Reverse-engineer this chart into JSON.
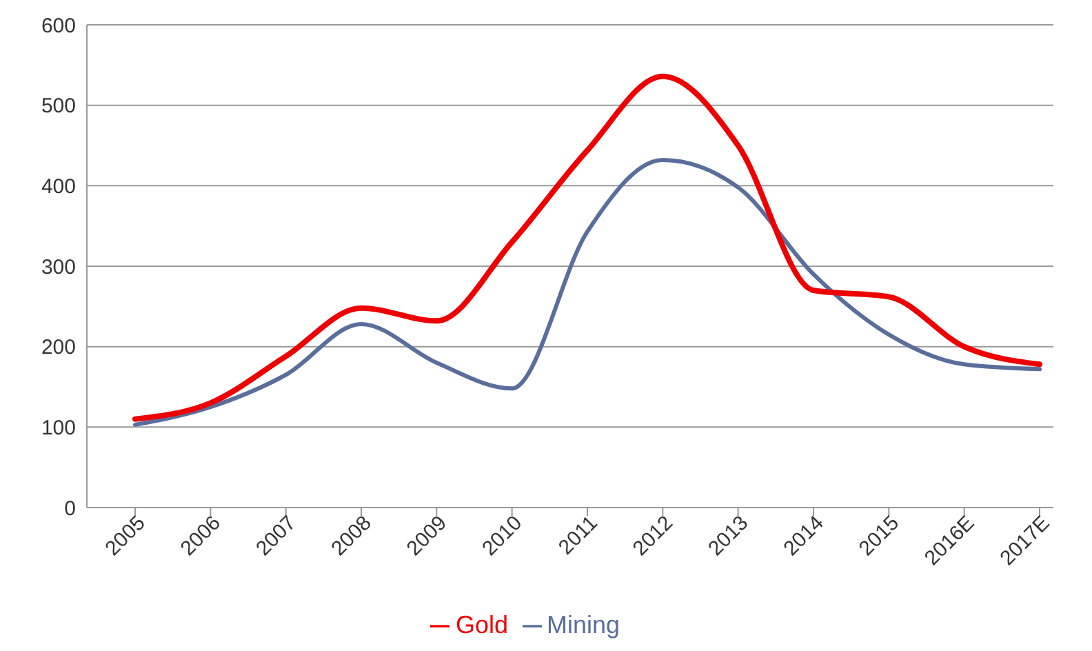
{
  "chart_data": {
    "type": "line",
    "categories": [
      "2005",
      "2006",
      "2007",
      "2008",
      "2009",
      "2010",
      "2011",
      "2012",
      "2013",
      "2014",
      "2015",
      "2016E",
      "2017E"
    ],
    "series": [
      {
        "name": "Mining",
        "color": "#5a6e9c",
        "values": [
          103,
          125,
          165,
          228,
          180,
          148,
          343,
          432,
          398,
          290,
          215,
          178,
          172
        ]
      },
      {
        "name": "Gold",
        "color": "#ee0000",
        "values": [
          110,
          130,
          188,
          248,
          232,
          330,
          444,
          536,
          450,
          270,
          262,
          200,
          178
        ]
      }
    ],
    "ylim": [
      0,
      600
    ],
    "yticks": [
      0,
      100,
      200,
      300,
      400,
      500,
      600
    ],
    "grid": "y",
    "legend": "bottom",
    "marker": "none",
    "line_style": "solid"
  }
}
